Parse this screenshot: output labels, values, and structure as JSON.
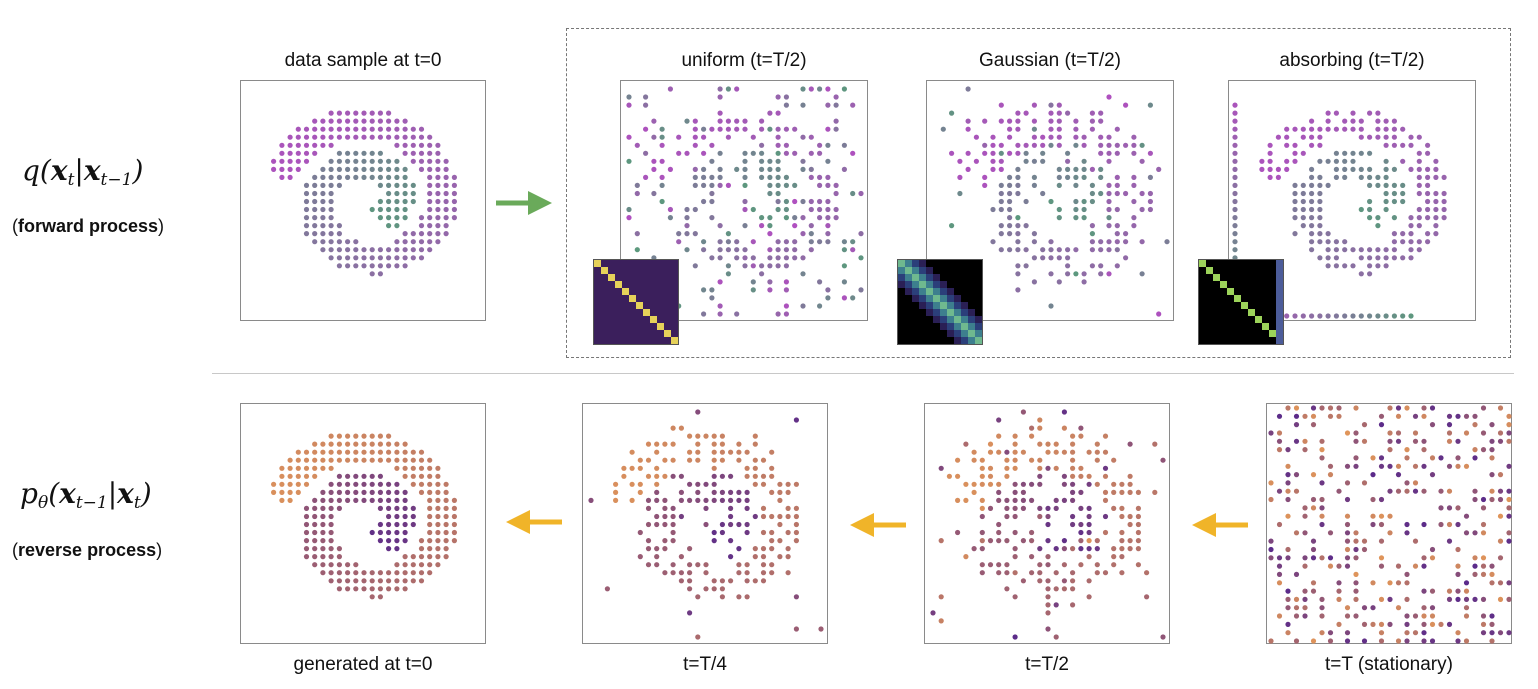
{
  "forward": {
    "math_q": "q(",
    "math_x": "x",
    "math_t": "t",
    "math_bar": "|",
    "math_tm1": "t−1",
    "math_close": ")",
    "label_open": "(",
    "label_bold": "forward process",
    "label_close": ")"
  },
  "reverse": {
    "math_p": "p",
    "math_theta": "θ",
    "math_open": "(",
    "math_x": "x",
    "math_tm1": "t−1",
    "math_bar": "|",
    "math_t": "t",
    "math_close": ")",
    "label_open": "(",
    "label_bold": "reverse process",
    "label_close": ")"
  },
  "top_panels": {
    "data": "data sample at t=0",
    "uniform": "uniform (t=T/2)",
    "gaussian": "Gaussian (t=T/2)",
    "absorbing": "absorbing (t=T/2)"
  },
  "bottom_captions": {
    "generated": "generated at t=0",
    "quarter": "t=T/4",
    "half": "t=T/2",
    "stationary": "t=T (stationary)"
  },
  "colors": {
    "forward_arrow": "#6aaa5a",
    "reverse_arrow": "#f0b429",
    "forward_palette_start": "#b04fc0",
    "forward_palette_end": "#5a9a7c",
    "reverse_palette_start": "#e0955a",
    "reverse_palette_end": "#5a2a8a",
    "uniform_matrix_bg": "#3b1f5c",
    "matrix_diag": "#e6d25a"
  }
}
